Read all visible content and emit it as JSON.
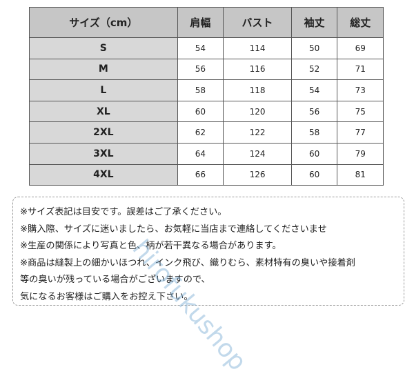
{
  "table": {
    "header": [
      "サイズ（cm）",
      "肩幅",
      "バスト",
      "袖丈",
      "総丈"
    ],
    "rows": [
      [
        "S",
        "54",
        "114",
        "50",
        "69"
      ],
      [
        "M",
        "56",
        "116",
        "52",
        "71"
      ],
      [
        "L",
        "58",
        "118",
        "54",
        "73"
      ],
      [
        "XL",
        "60",
        "120",
        "56",
        "75"
      ],
      [
        "2XL",
        "62",
        "122",
        "58",
        "77"
      ],
      [
        "3XL",
        "64",
        "124",
        "60",
        "79"
      ],
      [
        "4XL",
        "66",
        "126",
        "60",
        "81"
      ]
    ]
  },
  "notes": [
    "※サイズ表記は目安です。誤差はご了承ください。",
    "※購入際、サイズに迷いましたら、お気軽に当店まで連絡してくださいませ",
    "※生産の関係により写真と色、柄が若干異なる場合があります。",
    "※商品は縫製上の細かいほつれ、インク飛び、織りむら、素材特有の臭いや接着剤",
    "等の臭いが残っている場合がございますので、",
    "気になるお客様はご購入をお控え下さい。"
  ],
  "watermark": "hirofukushop"
}
